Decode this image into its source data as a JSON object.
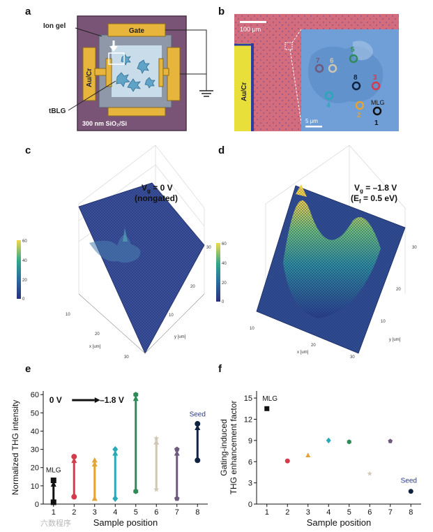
{
  "figure": {
    "panels": {
      "a": {
        "label": "a",
        "gate_label": "Gate",
        "iongel_label": "Ion gel",
        "aucr_label": "Au/Cr",
        "tblg_label": "tBLG",
        "substrate_label": "300 nm SiO₂/Si"
      },
      "b": {
        "label": "b",
        "scale_large": "100 μm",
        "scale_small": "5 μm",
        "aucr_label": "Au/Cr",
        "mlg_label": "MLG",
        "rings": [
          {
            "n": "7",
            "color": "#6f5a7e"
          },
          {
            "n": "6",
            "color": "#cfc6b3"
          },
          {
            "n": "5",
            "color": "#2e8b57"
          },
          {
            "n": "8",
            "color": "#0f2240"
          },
          {
            "n": "3",
            "color": "#d63b4d"
          },
          {
            "n": "4",
            "color": "#2aa7b8"
          },
          {
            "n": "2",
            "color": "#e3a335"
          },
          {
            "n": "1",
            "color": "#111111"
          }
        ]
      },
      "c": {
        "label": "c",
        "title_line1": "V",
        "title_sub": "g",
        "title_rest": " = 0 V",
        "title_line2": "(nongated)",
        "colorbar_ticks": [
          "60",
          "40",
          "20",
          "0"
        ],
        "z_ticks": [
          "60",
          "40",
          "20",
          "0"
        ],
        "x_ticks": [
          "10",
          "20",
          "30"
        ],
        "y_ticks": [
          "10",
          "20",
          "30"
        ],
        "x_label": "x [um]",
        "y_label": "y [um]"
      },
      "d": {
        "label": "d",
        "title_line1": "V",
        "title_sub": "g",
        "title_rest": " = –1.8 V",
        "title_line2_a": "(E",
        "title_line2_sub": "f",
        "title_line2_b": " = 0.5 eV)",
        "colorbar_ticks": [
          "60",
          "40",
          "20",
          "0"
        ],
        "z_ticks": [
          "60",
          "40",
          "20",
          "0"
        ],
        "x_ticks": [
          "10",
          "20",
          "30"
        ],
        "y_ticks": [
          "10",
          "20",
          "30"
        ],
        "x_label": "x [um]",
        "y_label": "y [um]"
      },
      "e": {
        "label": "e",
        "legend_from": "0 V",
        "legend_to": "–1.8 V",
        "mlg_label": "MLG",
        "seed_label": "Seed"
      },
      "f": {
        "label": "f",
        "mlg_label": "MLG",
        "seed_label": "Seed"
      }
    },
    "watermark": "六数程序"
  },
  "chart_data": [
    {
      "type": "scatter",
      "panel": "e",
      "xlabel": "Sample position",
      "ylabel": "Normalized THG intensity",
      "xlim": [
        0.5,
        8.5
      ],
      "ylim": [
        0,
        62
      ],
      "x_ticks": [
        1,
        2,
        3,
        4,
        5,
        6,
        7,
        8
      ],
      "y_ticks": [
        0,
        10,
        20,
        30,
        40,
        50,
        60
      ],
      "series": [
        {
          "x": 1,
          "from": 1,
          "to": 13,
          "color": "#111111",
          "marker": "square"
        },
        {
          "x": 2,
          "from": 4,
          "to": 26,
          "color": "#d63b4d",
          "marker": "circle"
        },
        {
          "x": 3,
          "from": 3,
          "to": 24,
          "color": "#e3a335",
          "marker": "triangle"
        },
        {
          "x": 4,
          "from": 3,
          "to": 30,
          "color": "#2aa7b8",
          "marker": "diamond"
        },
        {
          "x": 5,
          "from": 7,
          "to": 60,
          "color": "#2e8b57",
          "marker": "hexagon"
        },
        {
          "x": 6,
          "from": 8,
          "to": 36,
          "color": "#cfc6b3",
          "marker": "star"
        },
        {
          "x": 7,
          "from": 3,
          "to": 30,
          "color": "#6f5a7e",
          "marker": "pentagon"
        },
        {
          "x": 8,
          "from": 24,
          "to": 44,
          "color": "#0f2240",
          "marker": "circle"
        }
      ]
    },
    {
      "type": "scatter",
      "panel": "f",
      "xlabel": "Sample position",
      "ylabel_line1": "Gating-induced",
      "ylabel_line2": "THG enhancement factor",
      "xlim": [
        0.5,
        8.5
      ],
      "ylim": [
        0,
        16
      ],
      "x_ticks": [
        1,
        2,
        3,
        4,
        5,
        6,
        7,
        8
      ],
      "y_ticks": [
        0,
        3,
        6,
        9,
        12,
        15
      ],
      "points": [
        {
          "x": 1,
          "y": 13.5,
          "color": "#111111",
          "marker": "square"
        },
        {
          "x": 2,
          "y": 6.1,
          "color": "#d63b4d",
          "marker": "circle"
        },
        {
          "x": 3,
          "y": 6.9,
          "color": "#e3a335",
          "marker": "triangle"
        },
        {
          "x": 4,
          "y": 9.0,
          "color": "#2aa7b8",
          "marker": "diamond"
        },
        {
          "x": 5,
          "y": 8.8,
          "color": "#2e8b57",
          "marker": "hexagon"
        },
        {
          "x": 6,
          "y": 4.3,
          "color": "#cfc6b3",
          "marker": "star"
        },
        {
          "x": 7,
          "y": 8.9,
          "color": "#6f5a7e",
          "marker": "pentagon"
        },
        {
          "x": 8,
          "y": 1.8,
          "color": "#0f2240",
          "marker": "circle"
        }
      ]
    }
  ]
}
